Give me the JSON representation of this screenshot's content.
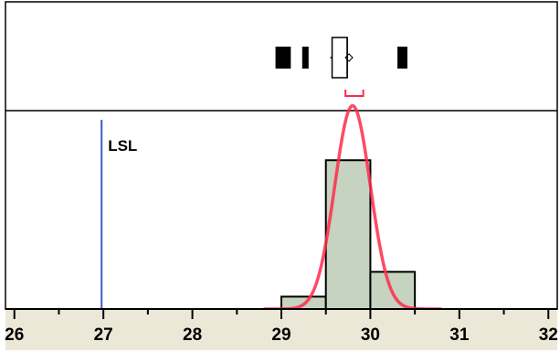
{
  "chart_data": {
    "type": "histogram",
    "x_ticks": [
      26,
      27,
      28,
      29,
      30,
      31,
      32
    ],
    "xlim": [
      25.9,
      32.1
    ],
    "bins": [
      {
        "x0": 29.0,
        "x1": 29.5,
        "count": 1
      },
      {
        "x0": 29.5,
        "x1": 30.0,
        "count": 12
      },
      {
        "x0": 30.0,
        "x1": 30.5,
        "count": 3
      }
    ],
    "ylim": [
      0,
      16
    ],
    "normal_fit": {
      "mean": 29.8,
      "sd": 0.2,
      "peak": 16.4,
      "color": "#ff2a4a"
    },
    "spec_limits": [
      {
        "label": "LSL",
        "value": 26.98,
        "color": "#3b5cc4"
      }
    ],
    "outlier_box": {
      "q1": 29.57,
      "median": 29.74,
      "q3": 29.74,
      "whisker_low": 29.55,
      "whisker_high": 29.75,
      "mean": 29.76,
      "shortest_half": [
        29.72,
        29.92
      ],
      "outliers_low": [
        28.97,
        29.03,
        29.07,
        29.27
      ],
      "outliers_high": [
        30.34,
        30.38
      ]
    },
    "bar_fill": "#c5d3c0",
    "axis_band_color": "#ece8d8",
    "grid": false
  }
}
